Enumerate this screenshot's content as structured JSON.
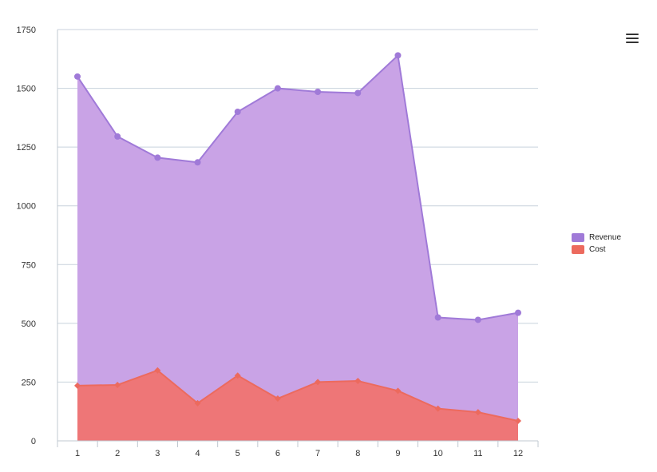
{
  "chart_data": {
    "type": "area",
    "title": "",
    "xlabel": "",
    "ylabel": "",
    "x": [
      1,
      2,
      3,
      4,
      5,
      6,
      7,
      8,
      9,
      10,
      11,
      12
    ],
    "x_tick_labels": [
      "1",
      "2",
      "3",
      "4",
      "5",
      "6",
      "7",
      "8",
      "9",
      "10",
      "11",
      "12"
    ],
    "ylim": [
      0,
      1750
    ],
    "y_ticks": [
      0,
      250,
      500,
      750,
      1000,
      1250,
      1500,
      1750
    ],
    "y_tick_labels": [
      "0",
      "250",
      "500",
      "750",
      "1000",
      "1250",
      "1500",
      "1750"
    ],
    "grid": true,
    "legend_position": "right",
    "series": [
      {
        "name": "Revenue",
        "color": "#a07ad8",
        "fill": "#c9a3e6",
        "marker": "circle",
        "values": [
          1550,
          1295,
          1205,
          1185,
          1400,
          1500,
          1485,
          1480,
          1640,
          525,
          515,
          545
        ]
      },
      {
        "name": "Cost",
        "color": "#ec6a5e",
        "fill": "#ee7677",
        "marker": "diamond",
        "values": [
          235,
          238,
          300,
          160,
          278,
          180,
          250,
          255,
          213,
          137,
          122,
          85
        ]
      }
    ]
  },
  "toolbar": {
    "menu_icon": "hamburger-menu-icon"
  }
}
